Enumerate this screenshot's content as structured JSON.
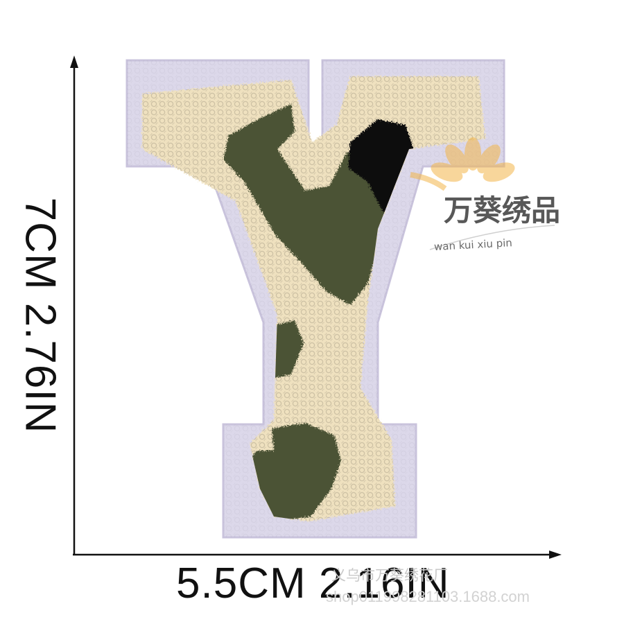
{
  "dimensions": {
    "height_label": "7CM  2.76IN",
    "width_label": "5.5CM  2.16IN"
  },
  "watermark": {
    "brand_name": "万葵绣品",
    "brand_pinyin": "wan kui xiu pin",
    "shop_name": "义乌市万葵绣花厂",
    "shop_url": "shop011998281103.1688.com"
  },
  "patch": {
    "letter": "Y",
    "colors": {
      "felt": "#dcd8ea",
      "chenille_cream": "#efe1bf",
      "camo_olive": "#4b5236",
      "camo_black": "#111111"
    }
  },
  "logo_icon": "sunflower-icon"
}
